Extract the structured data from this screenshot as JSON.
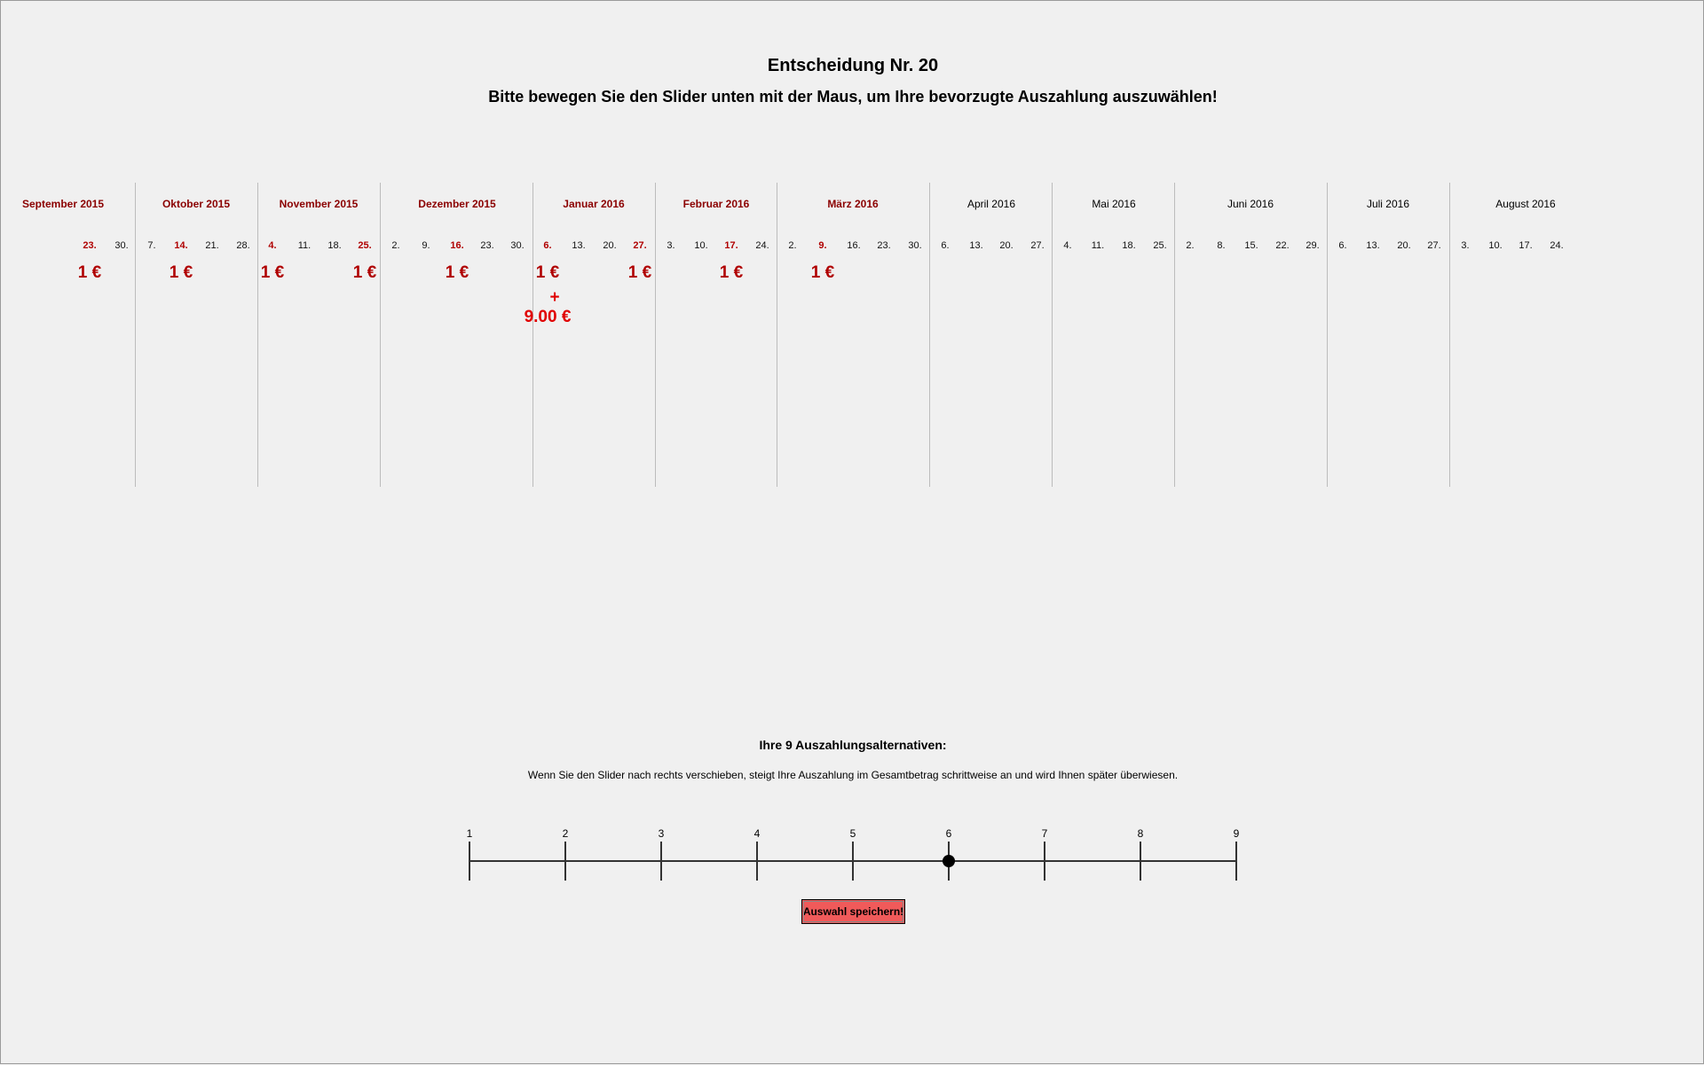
{
  "header": {
    "title": "Entscheidung Nr. 20",
    "instruction": "Bitte bewegen Sie den Slider unten mit der Maus, um Ihre bevorzugte Auszahlung auszuwählen!"
  },
  "calendar": {
    "months": [
      {
        "label": "September 2015",
        "highlight": true
      },
      {
        "label": "Oktober 2015",
        "highlight": true
      },
      {
        "label": "November 2015",
        "highlight": true
      },
      {
        "label": "Dezember 2015",
        "highlight": true
      },
      {
        "label": "Januar 2016",
        "highlight": true
      },
      {
        "label": "Februar 2016",
        "highlight": true
      },
      {
        "label": "März 2016",
        "highlight": true
      },
      {
        "label": "April 2016",
        "highlight": false
      },
      {
        "label": "Mai 2016",
        "highlight": false
      },
      {
        "label": "Juni 2016",
        "highlight": false
      },
      {
        "label": "Juli 2016",
        "highlight": false
      },
      {
        "label": "August 2016",
        "highlight": false
      }
    ],
    "days": [
      {
        "label": "23.",
        "highlight": true
      },
      {
        "label": "30.",
        "highlight": false
      },
      {
        "label": "7.",
        "highlight": false
      },
      {
        "label": "14.",
        "highlight": true
      },
      {
        "label": "21.",
        "highlight": false
      },
      {
        "label": "28.",
        "highlight": false
      },
      {
        "label": "4.",
        "highlight": true
      },
      {
        "label": "11.",
        "highlight": false
      },
      {
        "label": "18.",
        "highlight": false
      },
      {
        "label": "25.",
        "highlight": true
      },
      {
        "label": "2.",
        "highlight": false
      },
      {
        "label": "9.",
        "highlight": false
      },
      {
        "label": "16.",
        "highlight": true
      },
      {
        "label": "23.",
        "highlight": false
      },
      {
        "label": "30.",
        "highlight": false
      },
      {
        "label": "6.",
        "highlight": true
      },
      {
        "label": "13.",
        "highlight": false
      },
      {
        "label": "20.",
        "highlight": false
      },
      {
        "label": "27.",
        "highlight": true
      },
      {
        "label": "3.",
        "highlight": false
      },
      {
        "label": "10.",
        "highlight": false
      },
      {
        "label": "17.",
        "highlight": true
      },
      {
        "label": "24.",
        "highlight": false
      },
      {
        "label": "2.",
        "highlight": false
      },
      {
        "label": "9.",
        "highlight": true
      },
      {
        "label": "16.",
        "highlight": false
      },
      {
        "label": "23.",
        "highlight": false
      },
      {
        "label": "30.",
        "highlight": false
      },
      {
        "label": "6.",
        "highlight": false
      },
      {
        "label": "13.",
        "highlight": false
      },
      {
        "label": "20.",
        "highlight": false
      },
      {
        "label": "27.",
        "highlight": false
      },
      {
        "label": "4.",
        "highlight": false
      },
      {
        "label": "11.",
        "highlight": false
      },
      {
        "label": "18.",
        "highlight": false
      },
      {
        "label": "25.",
        "highlight": false
      },
      {
        "label": "2.",
        "highlight": false
      },
      {
        "label": "8.",
        "highlight": false
      },
      {
        "label": "15.",
        "highlight": false
      },
      {
        "label": "22.",
        "highlight": false
      },
      {
        "label": "29.",
        "highlight": false
      },
      {
        "label": "6.",
        "highlight": false
      },
      {
        "label": "13.",
        "highlight": false
      },
      {
        "label": "20.",
        "highlight": false
      },
      {
        "label": "27.",
        "highlight": false
      },
      {
        "label": "3.",
        "highlight": false
      },
      {
        "label": "10.",
        "highlight": false
      },
      {
        "label": "17.",
        "highlight": false
      },
      {
        "label": "24.",
        "highlight": false
      }
    ],
    "payments": [
      {
        "date": "23.09.2015",
        "amount": "1 €"
      },
      {
        "date": "14.10.2015",
        "amount": "1 €"
      },
      {
        "date": "04.11.2015",
        "amount": "1 €"
      },
      {
        "date": "25.11.2015",
        "amount": "1 €"
      },
      {
        "date": "16.12.2015",
        "amount": "1 €"
      },
      {
        "date": "06.01.2016",
        "amount": "1 €"
      },
      {
        "date": "27.01.2016",
        "amount": "1 €"
      },
      {
        "date": "17.02.2016",
        "amount": "1 €"
      },
      {
        "date": "09.03.2016",
        "amount": "1 €"
      }
    ],
    "later_payment": {
      "date": "06.01.2016",
      "plus": "+",
      "amount": "9.00 €"
    }
  },
  "alternatives": {
    "heading": "Ihre 9 Auszahlungsalternativen:",
    "description": "Wenn Sie den Slider nach rechts verschieben, steigt Ihre Auszahlung im Gesamtbetrag schrittweise an und wird Ihnen später überwiesen.",
    "ticks": [
      "1",
      "2",
      "3",
      "4",
      "5",
      "6",
      "7",
      "8",
      "9"
    ],
    "selected": 6
  },
  "save_button": {
    "label": "Auswahl speichern!",
    "color": "#f05a5a"
  },
  "colors": {
    "highlight_dark": "#8b0000",
    "highlight": "#b00000",
    "later_amount": "#e00000"
  }
}
